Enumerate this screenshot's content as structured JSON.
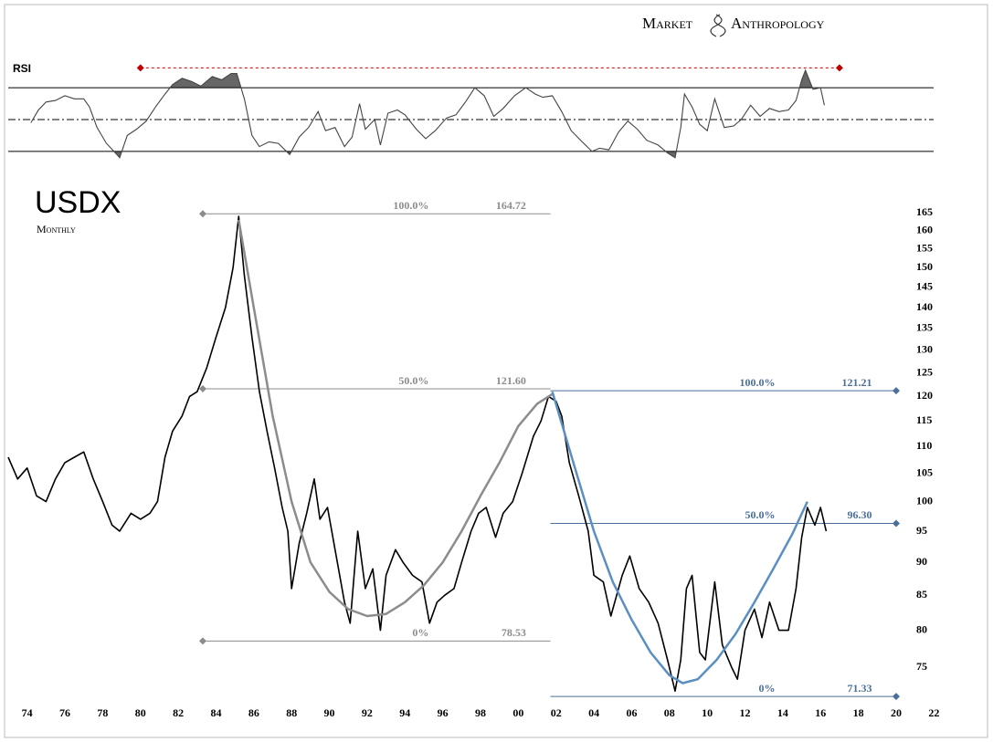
{
  "brand": [
    "Market",
    "Anthropology"
  ],
  "chart_data": [
    {
      "type": "line",
      "title": "RSI",
      "ylim": [
        15,
        85
      ],
      "xlim": [
        1973,
        2023
      ],
      "levels": [
        70,
        50,
        30
      ],
      "ref_line": {
        "value": 82.5,
        "x": [
          1980,
          2017
        ],
        "color": "#c00000"
      },
      "shade_color": "#666666",
      "series": [
        {
          "color": "#444444",
          "x": [
            1974.2,
            1974.6,
            1975.0,
            1975.5,
            1976.0,
            1976.5,
            1977.0,
            1977.3,
            1977.7,
            1978.2,
            1978.6,
            1978.9,
            1979.3,
            1979.8,
            1980.3,
            1980.8,
            1981.3,
            1981.7,
            1982.2,
            1982.7,
            1983.2,
            1983.8,
            1984.3,
            1984.8,
            1985.1,
            1985.5,
            1985.9,
            1986.3,
            1986.8,
            1987.3,
            1987.9,
            1988.4,
            1988.9,
            1989.4,
            1989.8,
            1990.3,
            1990.8,
            1991.2,
            1991.6,
            1991.9,
            1992.4,
            1992.7,
            1993.1,
            1993.6,
            1994.0,
            1994.6,
            1995.1,
            1995.6,
            1996.2,
            1996.7,
            1997.2,
            1997.7,
            1998.2,
            1998.7,
            1999.2,
            1999.8,
            2000.4,
            2000.9,
            2001.3,
            2001.8,
            2002.3,
            2002.8,
            2003.3,
            2003.9,
            2004.3,
            2004.8,
            2005.3,
            2005.8,
            2006.3,
            2006.8,
            2007.4,
            2007.9,
            2008.3,
            2008.6,
            2008.8,
            2009.2,
            2009.6,
            2010.0,
            2010.4,
            2010.9,
            2011.4,
            2011.8,
            2012.3,
            2012.8,
            2013.3,
            2013.8,
            2014.3,
            2014.7,
            2015.0,
            2015.2,
            2015.6,
            2016.0,
            2016.2
          ],
          "values": [
            48,
            56,
            61,
            62,
            65,
            63,
            63,
            58,
            45,
            35,
            30,
            26,
            40,
            44,
            49,
            58,
            66,
            72,
            76,
            74,
            71,
            77,
            75,
            79,
            79,
            63,
            40,
            33,
            36,
            35,
            28,
            39,
            45,
            55,
            43,
            45,
            33,
            39,
            60,
            44,
            50,
            34,
            54,
            56,
            53,
            44,
            38,
            43,
            51,
            53,
            61,
            70,
            65,
            52,
            57,
            65,
            70,
            66,
            64,
            65,
            55,
            43,
            37,
            30,
            32,
            31,
            42,
            49,
            44,
            37,
            34,
            29,
            26,
            45,
            66,
            58,
            47,
            43,
            63,
            45,
            46,
            50,
            59,
            52,
            57,
            55,
            56,
            62,
            75,
            81,
            69,
            70,
            59
          ]
        }
      ]
    },
    {
      "type": "line",
      "title": "USDX",
      "subtitle": "Monthly",
      "log_scale": true,
      "xlim": [
        1973,
        2023
      ],
      "ylim": [
        70,
        175
      ],
      "xticks": [
        {
          "value": 1974,
          "label": "74"
        },
        {
          "value": 1976,
          "label": "76"
        },
        {
          "value": 1978,
          "label": "78"
        },
        {
          "value": 1980,
          "label": "80"
        },
        {
          "value": 1982,
          "label": "82"
        },
        {
          "value": 1984,
          "label": "84"
        },
        {
          "value": 1986,
          "label": "86"
        },
        {
          "value": 1988,
          "label": "88"
        },
        {
          "value": 1990,
          "label": "90"
        },
        {
          "value": 1992,
          "label": "92"
        },
        {
          "value": 1994,
          "label": "94"
        },
        {
          "value": 1996,
          "label": "96"
        },
        {
          "value": 1998,
          "label": "98"
        },
        {
          "value": 2000,
          "label": "00"
        },
        {
          "value": 2002,
          "label": "02"
        },
        {
          "value": 2004,
          "label": "04"
        },
        {
          "value": 2006,
          "label": "06"
        },
        {
          "value": 2008,
          "label": "08"
        },
        {
          "value": 2010,
          "label": "10"
        },
        {
          "value": 2012,
          "label": "12"
        },
        {
          "value": 2014,
          "label": "14"
        },
        {
          "value": 2016,
          "label": "16"
        },
        {
          "value": 2018,
          "label": "18"
        },
        {
          "value": 2020,
          "label": "20"
        },
        {
          "value": 2022,
          "label": "22"
        }
      ],
      "yticks": [
        75,
        80,
        85,
        90,
        95,
        100,
        105,
        110,
        115,
        120,
        125,
        130,
        135,
        140,
        145,
        150,
        155,
        160,
        165
      ],
      "series": [
        {
          "color": "#000000",
          "x": [
            1973.0,
            1973.5,
            1974.0,
            1974.5,
            1975.0,
            1975.5,
            1976.0,
            1976.5,
            1977.0,
            1977.5,
            1978.0,
            1978.5,
            1978.9,
            1979.5,
            1980.0,
            1980.5,
            1980.9,
            1981.3,
            1981.7,
            1982.2,
            1982.6,
            1983.0,
            1983.5,
            1984.0,
            1984.5,
            1984.9,
            1985.2,
            1985.5,
            1985.9,
            1986.3,
            1986.7,
            1987.1,
            1987.5,
            1987.8,
            1988.0,
            1988.4,
            1988.8,
            1989.2,
            1989.5,
            1989.9,
            1990.3,
            1990.8,
            1991.1,
            1991.5,
            1991.9,
            1992.3,
            1992.7,
            1993.0,
            1993.5,
            1993.9,
            1994.4,
            1994.9,
            1995.3,
            1995.7,
            1996.1,
            1996.6,
            1997.0,
            1997.5,
            1997.9,
            1998.3,
            1998.8,
            1999.2,
            1999.7,
            2000.2,
            2000.8,
            2001.2,
            2001.6,
            2002.0,
            2002.3,
            2002.7,
            2003.2,
            2003.7,
            2004.0,
            2004.5,
            2004.9,
            2005.5,
            2005.9,
            2006.4,
            2006.9,
            2007.4,
            2007.9,
            2008.3,
            2008.6,
            2008.9,
            2009.2,
            2009.6,
            2009.9,
            2010.4,
            2010.8,
            2011.3,
            2011.6,
            2012.0,
            2012.5,
            2012.9,
            2013.3,
            2013.8,
            2014.3,
            2014.7,
            2015.0,
            2015.3,
            2015.7,
            2016.0,
            2016.3
          ],
          "values": [
            108,
            104,
            106,
            101,
            100,
            104,
            107,
            108,
            109,
            104,
            100,
            96,
            95,
            98,
            97,
            98,
            100,
            108,
            113,
            116,
            120,
            121,
            126,
            133,
            140,
            150,
            164,
            148,
            133,
            121,
            113,
            106,
            99,
            95,
            86,
            93,
            98,
            104,
            97,
            99,
            92,
            84,
            81,
            95,
            86,
            89,
            80,
            88,
            92,
            90,
            88,
            87,
            81,
            84,
            85,
            86,
            90,
            95,
            98,
            99,
            94,
            98,
            100,
            105,
            112,
            115,
            120,
            119,
            116,
            107,
            101,
            95,
            88,
            87,
            82,
            88,
            91,
            86,
            84,
            81,
            76,
            72,
            76,
            86,
            88,
            77,
            76,
            87,
            78,
            75,
            73.5,
            80,
            83,
            79,
            84,
            80,
            80,
            86,
            94,
            99,
            96,
            99,
            95
          ]
        }
      ],
      "fits": [
        {
          "color": "#8c8c8c",
          "x": [
            1985.2,
            1986,
            1987,
            1988,
            1989,
            1990,
            1991,
            1992,
            1993,
            1994,
            1995,
            1996,
            1997,
            1998,
            1999,
            2000,
            2001,
            2001.8
          ],
          "values": [
            163,
            140,
            116,
            100,
            90,
            85.5,
            83,
            82,
            82.3,
            84,
            86.5,
            90,
            95,
            101,
            107,
            114,
            118.5,
            120.5
          ]
        },
        {
          "color": "#5b8fc2",
          "x": [
            2001.8,
            2003,
            2004,
            2005,
            2006,
            2007,
            2008,
            2008.7,
            2009.5,
            2010.5,
            2011.5,
            2012.5,
            2013.5,
            2014.5,
            2015.3
          ],
          "values": [
            121,
            106,
            95,
            87,
            81.5,
            77,
            74,
            73,
            73.5,
            76,
            79.5,
            84,
            89,
            94.5,
            100
          ]
        }
      ],
      "fib_sets": [
        {
          "color": "#8c8c8c",
          "marker_end": "left",
          "x": [
            1983.3,
            2001.7
          ],
          "levels": [
            {
              "label": "100.0%",
              "value": 164.72
            },
            {
              "label": "50.0%",
              "value": 121.6,
              "value_label": "121.60"
            },
            {
              "label": "0%",
              "value": 78.53
            }
          ]
        },
        {
          "color": "#4a6f9b",
          "marker_end": "right",
          "x": [
            2001.7,
            2020
          ],
          "levels": [
            {
              "label": "100.0%",
              "value": 121.21
            },
            {
              "label": "50.0%",
              "value": 96.3,
              "value_label": "96.30"
            },
            {
              "label": "0%",
              "value": 71.33
            }
          ]
        }
      ]
    }
  ]
}
